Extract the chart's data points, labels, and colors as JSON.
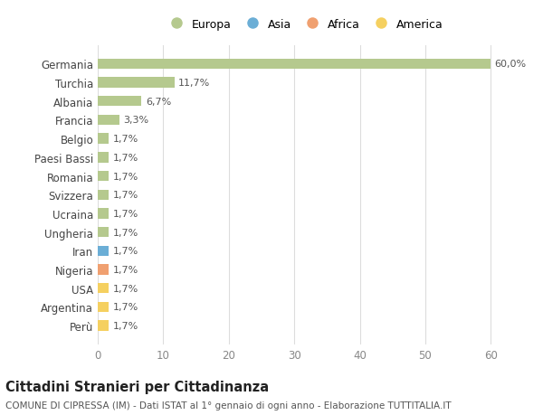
{
  "countries": [
    "Germania",
    "Turchia",
    "Albania",
    "Francia",
    "Belgio",
    "Paesi Bassi",
    "Romania",
    "Svizzera",
    "Ucraina",
    "Ungheria",
    "Iran",
    "Nigeria",
    "USA",
    "Argentina",
    "Perù"
  ],
  "values": [
    60.0,
    11.7,
    6.7,
    3.3,
    1.7,
    1.7,
    1.7,
    1.7,
    1.7,
    1.7,
    1.7,
    1.7,
    1.7,
    1.7,
    1.7
  ],
  "labels": [
    "60,0%",
    "11,7%",
    "6,7%",
    "3,3%",
    "1,7%",
    "1,7%",
    "1,7%",
    "1,7%",
    "1,7%",
    "1,7%",
    "1,7%",
    "1,7%",
    "1,7%",
    "1,7%",
    "1,7%"
  ],
  "continents": [
    "Europa",
    "Europa",
    "Europa",
    "Europa",
    "Europa",
    "Europa",
    "Europa",
    "Europa",
    "Europa",
    "Europa",
    "Asia",
    "Africa",
    "America",
    "America",
    "America"
  ],
  "continent_colors": {
    "Europa": "#b5c98e",
    "Asia": "#6baed6",
    "Africa": "#f0a070",
    "America": "#f5d060"
  },
  "legend_entries": [
    "Europa",
    "Asia",
    "Africa",
    "America"
  ],
  "legend_colors": [
    "#b5c98e",
    "#6baed6",
    "#f0a070",
    "#f5d060"
  ],
  "xlim": [
    0,
    63
  ],
  "xticks": [
    0,
    10,
    20,
    30,
    40,
    50,
    60
  ],
  "title": "Cittadini Stranieri per Cittadinanza",
  "subtitle": "COMUNE DI CIPRESSA (IM) - Dati ISTAT al 1° gennaio di ogni anno - Elaborazione TUTTITALIA.IT",
  "background_color": "#ffffff",
  "grid_color": "#dddddd",
  "bar_height": 0.55,
  "label_fontsize": 8,
  "tick_fontsize": 8.5,
  "title_fontsize": 10.5,
  "subtitle_fontsize": 7.5
}
